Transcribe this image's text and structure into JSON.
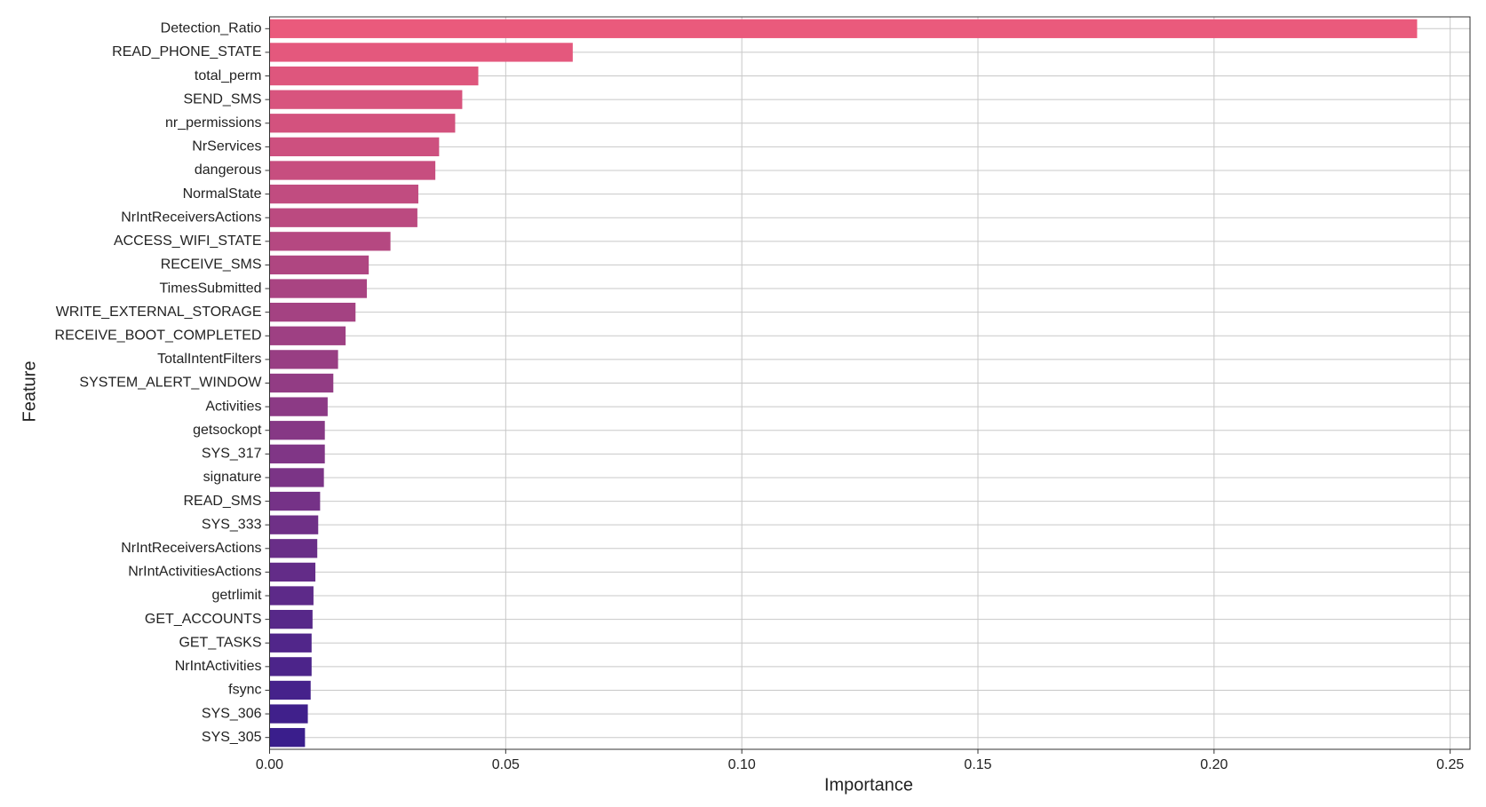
{
  "chart_data": {
    "type": "barh",
    "xlabel": "Importance",
    "ylabel": "Feature",
    "categories": [
      "Detection_Ratio",
      "READ_PHONE_STATE",
      "total_perm",
      "SEND_SMS",
      "nr_permissions",
      "NrServices",
      "dangerous",
      "NormalState",
      "NrIntReceiversActions",
      "ACCESS_WIFI_STATE",
      "RECEIVE_SMS",
      "TimesSubmitted",
      "WRITE_EXTERNAL_STORAGE",
      "RECEIVE_BOOT_COMPLETED",
      "TotalIntentFilters",
      "SYSTEM_ALERT_WINDOW",
      "Activities",
      "getsockopt",
      "SYS_317",
      "signature",
      "READ_SMS",
      "SYS_333",
      "NrIntReceiversActions",
      "NrIntActivitiesActions",
      "getrlimit",
      "GET_ACCOUNTS",
      "GET_TASKS",
      "NrIntActivities",
      "fsync",
      "SYS_306",
      "SYS_305"
    ],
    "values": [
      0.243,
      0.0642,
      0.0442,
      0.0408,
      0.0393,
      0.0359,
      0.0351,
      0.0315,
      0.0313,
      0.0256,
      0.021,
      0.0206,
      0.0182,
      0.0161,
      0.0145,
      0.0135,
      0.0123,
      0.0117,
      0.0117,
      0.0115,
      0.0107,
      0.0103,
      0.0101,
      0.0097,
      0.0093,
      0.0091,
      0.0089,
      0.0089,
      0.0087,
      0.0081,
      0.0075
    ],
    "palette": [
      "#ea5a7c",
      "#3a1e8c"
    ],
    "xlim": [
      0,
      0.2542
    ],
    "xticks": [
      {
        "value": 0,
        "label": "0.00"
      },
      {
        "value": 0.05,
        "label": "0.05"
      },
      {
        "value": 0.1,
        "label": "0.10"
      },
      {
        "value": 0.15,
        "label": "0.15"
      },
      {
        "value": 0.2,
        "label": "0.20"
      },
      {
        "value": 0.25,
        "label": "0.25"
      }
    ],
    "grid": true
  }
}
